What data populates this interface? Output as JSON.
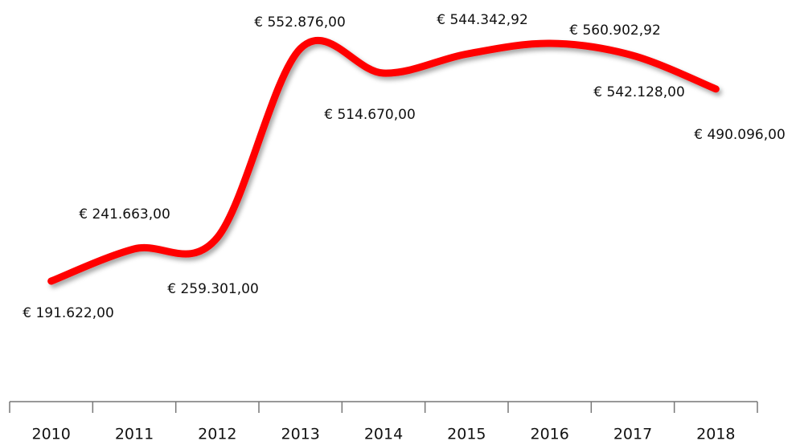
{
  "chart_data": {
    "type": "line",
    "categories": [
      "2010",
      "2011",
      "2012",
      "2013",
      "2014",
      "2015",
      "2016",
      "2017",
      "2018"
    ],
    "series": [
      {
        "name": null,
        "color": "#ff0000",
        "values": [
          191622,
          241663,
          259301,
          552876,
          514670,
          544342.92,
          560902.92,
          542128,
          490096
        ],
        "value_labels": [
          "€ 191.622,00",
          "€ 241.663,00",
          "€ 259.301,00",
          "€ 552.876,00",
          "€ 514.670,00",
          "€ 544.342,92",
          "€ 560.902,92",
          "€ 542.128,00",
          "€ 490.096,00"
        ]
      }
    ]
  }
}
